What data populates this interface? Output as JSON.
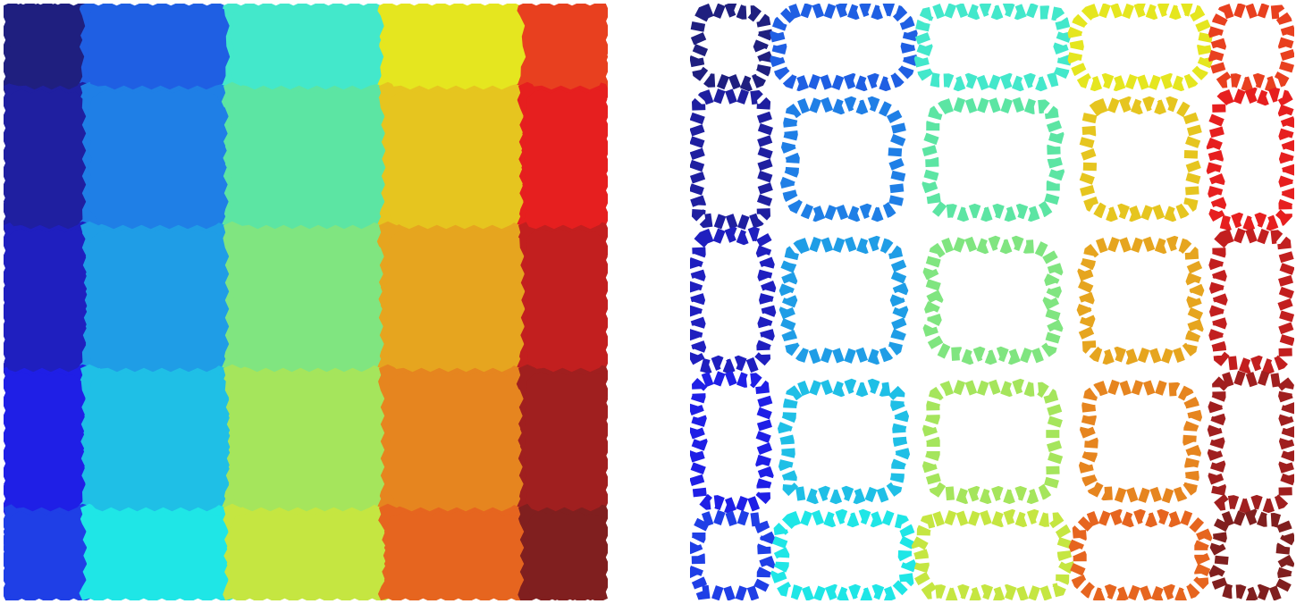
{
  "diagram": {
    "type": "partition",
    "grid": {
      "rows": 5,
      "cols": 5
    },
    "colors": [
      [
        "#1f1f7f",
        "#1f5fe3",
        "#43e8cb",
        "#e5e61f",
        "#e8401f"
      ],
      [
        "#1f1fa0",
        "#1f7fe6",
        "#5ce5a3",
        "#e6c51f",
        "#e61f1f"
      ],
      [
        "#1f1fbf",
        "#1f9de6",
        "#80e580",
        "#e6a51f",
        "#c21f1f"
      ],
      [
        "#1f1fe6",
        "#1fbfe6",
        "#a5e55c",
        "#e6851f",
        "#a01f1f"
      ],
      [
        "#1f3fe6",
        "#1fe6e6",
        "#c5e641",
        "#e6651f",
        "#801f1f"
      ]
    ],
    "panels": [
      {
        "name": "filled-regions",
        "style": "fill"
      },
      {
        "name": "region-boundaries",
        "style": "outline"
      }
    ]
  }
}
